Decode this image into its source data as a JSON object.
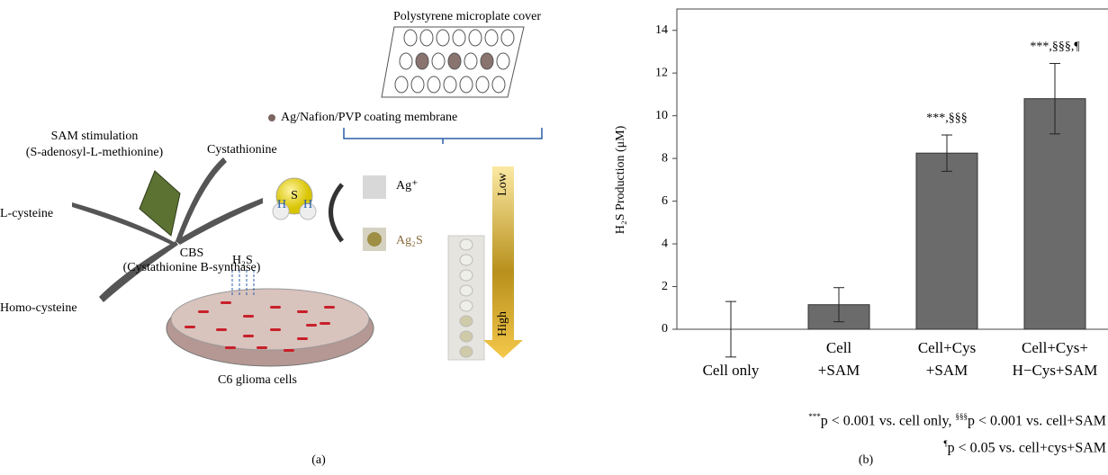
{
  "chart_data": {
    "type": "bar",
    "y_label": "H₂S Production (μM)",
    "categories": [
      "Cell only",
      "Cell\n+SAM",
      "Cell+Cys\n+SAM",
      "Cell+Cys+\nH−Cys+SAM"
    ],
    "values": [
      0,
      1.15,
      8.25,
      10.8
    ],
    "errors": [
      1.3,
      0.8,
      0.85,
      1.65
    ],
    "bar_annotations": [
      null,
      null,
      "***,§§§",
      "***,§§§,¶"
    ],
    "color": "#6b6b6b",
    "ylim": [
      0,
      15
    ],
    "yticks": [
      0,
      2,
      4,
      6,
      8,
      10,
      12,
      14
    ],
    "grid": false,
    "footnote": {
      "line1": [
        "***",
        "p < 0.001 vs. cell only, ",
        "§§§",
        "p < 0.001 vs. cell+SAM"
      ],
      "line2": [
        "¶",
        "p < 0.05 vs. cell+cys+SAM"
      ]
    },
    "caption": "(b)"
  },
  "diagram": {
    "caption": "(a)",
    "plate_label": "Polystyrene microplate cover",
    "membrane_label": "Ag/Nafion/PVP coating membrane",
    "sam_line1": "SAM stimulation",
    "sam_line2": "(S-adenosyl-L-methionine)",
    "cystathionine": "Cystathionine",
    "l_cysteine": "L-cysteine",
    "cbs_line1": "CBS",
    "cbs_line2": "(Cystathionine B-synthase)",
    "homo_cysteine": "Homo-cysteine",
    "cells": "C6 glioma cells",
    "h2s": "H₂S",
    "sulfur": "S",
    "hydrogen": "H",
    "ag_ion": "Ag⁺",
    "ag2s": "Ag₂S",
    "low": "Low",
    "high": "High"
  }
}
